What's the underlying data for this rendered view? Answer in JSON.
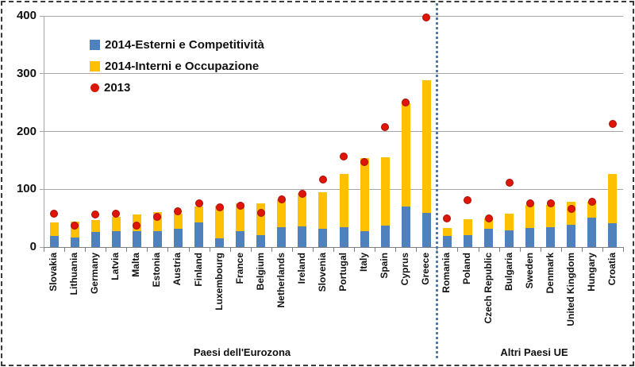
{
  "chart_data": {
    "type": "bar",
    "subtype": "stacked-bars-with-point-series",
    "categories": [
      "Slovakia",
      "Lithuania",
      "Germany",
      "Latvia",
      "Malta",
      "Estonia",
      "Austria",
      "Finland",
      "Luxembourg",
      "France",
      "Belgium",
      "Netherlands",
      "Ireland",
      "Slovenia",
      "Portugal",
      "Italy",
      "Spain",
      "Cyprus",
      "Greece",
      "Romania",
      "Poland",
      "Czech Republic",
      "Bulgaria",
      "Sweden",
      "Denmark",
      "United Kingdom",
      "Hungary",
      "Croatia"
    ],
    "series": [
      {
        "name": "2014-Esterni e Competitività",
        "type": "bar-stack-segment",
        "color": "#4F81BD",
        "values": [
          19,
          17,
          26,
          27,
          28,
          28,
          31,
          43,
          15,
          27,
          21,
          34,
          36,
          31,
          34,
          27,
          37,
          70,
          59,
          19,
          21,
          32,
          29,
          33,
          35,
          39,
          51,
          41
        ]
      },
      {
        "name": "2014-Interni e Occupazione",
        "type": "bar-stack-segment",
        "color": "#FFC000",
        "values": [
          23,
          27,
          21,
          25,
          29,
          33,
          27,
          27,
          57,
          49,
          55,
          49,
          58,
          64,
          93,
          127,
          119,
          179,
          230,
          14,
          27,
          18,
          29,
          40,
          38,
          39,
          27,
          86
        ]
      },
      {
        "name": "2013",
        "type": "point",
        "color": "#DF1509",
        "values": [
          58,
          37,
          56,
          58,
          37,
          52,
          62,
          76,
          69,
          72,
          59,
          82,
          92,
          117,
          157,
          147,
          208,
          250,
          397,
          50,
          81,
          49,
          112,
          75,
          76,
          66,
          79,
          213
        ]
      }
    ],
    "groups": [
      {
        "label": "Paesi dell'Eurozona",
        "start": 0,
        "count": 19
      },
      {
        "label": "Altri Paesi UE",
        "start": 19,
        "count": 9
      }
    ],
    "y_axis": {
      "min": 0,
      "max": 400,
      "step": 100,
      "tick_labels": [
        "0",
        "100",
        "200",
        "300",
        "400"
      ]
    },
    "grid": true,
    "legend_position": "top-left-inside"
  },
  "colors": {
    "separator_line": "#4C7BB5",
    "gridline": "#A6A6A6",
    "point_border": "#A81007"
  }
}
